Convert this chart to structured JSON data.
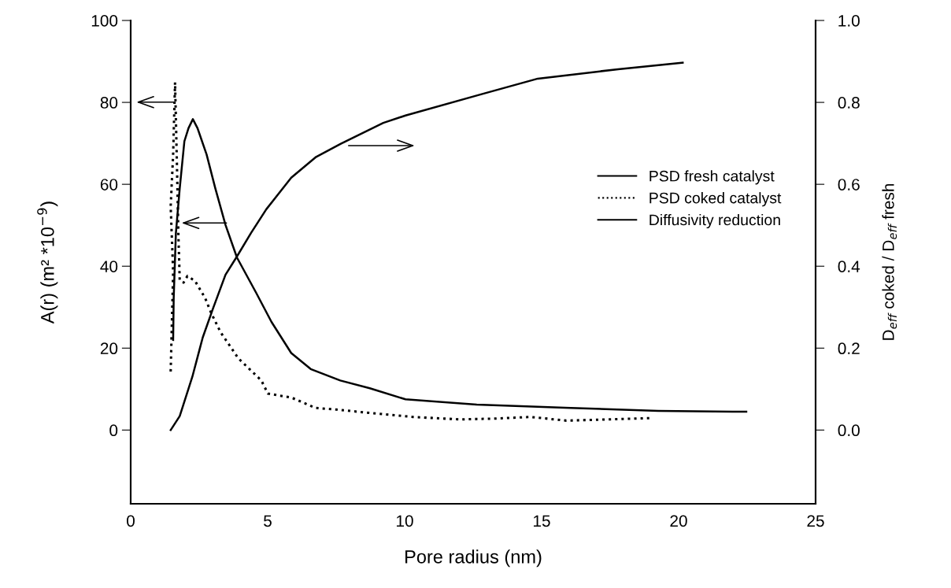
{
  "chart_data": {
    "type": "line",
    "xlabel": "Pore radius (nm)",
    "ylabel": "A(r) (m² *10$^{−9}$)",
    "y2label": "D$_{eff}$ coked / D$_{eff}$ fresh",
    "xlim": [
      0,
      25
    ],
    "xticks": [
      0,
      5,
      10,
      15,
      20,
      25
    ],
    "ylim": [
      -18,
      100
    ],
    "yticks": [
      0,
      20,
      40,
      60,
      80,
      100
    ],
    "y2lim": [
      -0.18,
      1.0
    ],
    "y2ticks": [
      {
        "value": 0,
        "label": "0.0"
      },
      {
        "value": 0.2,
        "label": "0.2"
      },
      {
        "value": 0.4,
        "label": "0.4"
      },
      {
        "value": 0.6,
        "label": "0.6"
      },
      {
        "value": 0.8,
        "label": "0.8"
      },
      {
        "value": 1.0,
        "label": "1.0"
      }
    ],
    "grid": false,
    "legend": "right",
    "marker": "none",
    "series": [
      {
        "name": "PSD fresh catalyst",
        "color": "#000000",
        "line_style": "solid",
        "x": [
          1.55,
          1.57,
          1.65,
          1.79,
          1.96,
          2.11,
          2.27,
          2.44,
          2.77,
          3.09,
          3.46,
          3.88,
          4.58,
          5.14,
          5.86,
          6.57,
          7.65,
          8.73,
          10.03,
          12.63,
          16.06,
          19.26,
          21.97,
          22.47
        ],
        "values": [
          22,
          32.2,
          48.1,
          59,
          70.5,
          73.7,
          75.9,
          73.7,
          67.3,
          59,
          50.1,
          42.1,
          33.5,
          26.4,
          18.8,
          14.9,
          12.1,
          10.2,
          7.5,
          6.2,
          5.4,
          4.7,
          4.5,
          4.5
        ]
      },
      {
        "name": "PSD coked catalyst",
        "color": "#000000",
        "line_style": "dotted",
        "x": [
          1.46,
          1.55,
          1.46,
          1.55,
          1.62,
          1.69,
          1.74,
          1.79,
          1.93,
          2.07,
          2.35,
          2.72,
          2.95,
          3.28,
          3.93,
          4.77,
          5.01,
          5.88,
          6.74,
          7.5,
          8.86,
          10.3,
          12.0,
          13.3,
          14.6,
          15.9,
          18.93
        ],
        "values": [
          14.3,
          38.6,
          54.6,
          67.3,
          84.9,
          64.2,
          48.1,
          36.6,
          36,
          37.6,
          36.4,
          32.2,
          28.4,
          23.9,
          17.5,
          12.1,
          8.9,
          7.9,
          5.4,
          5.0,
          4.1,
          3.2,
          2.6,
          2.8,
          3.2,
          2.3,
          2.9
        ]
      },
      {
        "name": "Diffusivity reduction",
        "color": "#000000",
        "line_style": "solid",
        "axis": "y2",
        "x": [
          1.46,
          1.79,
          2.25,
          2.63,
          3.0,
          3.46,
          3.88,
          4.39,
          4.95,
          5.86,
          6.77,
          7.67,
          9.22,
          10.03,
          12.81,
          14.86,
          17.79,
          20.15
        ],
        "values": [
          0.0,
          0.034,
          0.13,
          0.226,
          0.296,
          0.379,
          0.424,
          0.481,
          0.539,
          0.616,
          0.667,
          0.699,
          0.75,
          0.768,
          0.82,
          0.858,
          0.881,
          0.897
        ]
      }
    ]
  }
}
